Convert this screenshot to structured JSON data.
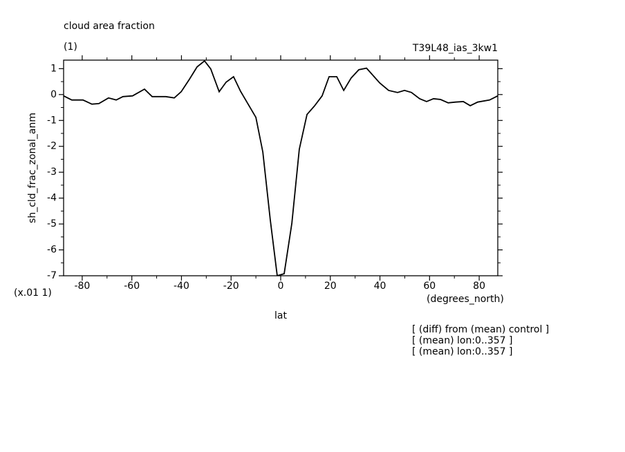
{
  "chart_data": {
    "type": "line",
    "title": "cloud area fraction",
    "subtitle": "(1)",
    "dataset": "T39L48_ias_3kw1",
    "ylabel": "sh_cld_frac_zonal_anm",
    "yscale_note": "(x.01 1)",
    "xunits": "(degrees_north)",
    "xlabel": "lat",
    "notes": [
      "[ (diff) from (mean) control ]",
      "[ (mean) lon:0..357 ]",
      "[ (mean) lon:0..357 ]"
    ],
    "xlim": [
      -87.5,
      87.5
    ],
    "ylim": [
      -7,
      1.33
    ],
    "xticks": [
      -80,
      -60,
      -40,
      -20,
      0,
      20,
      40,
      60,
      80
    ],
    "yticks": [
      -7,
      -6,
      -5,
      -4,
      -3,
      -2,
      -1,
      0,
      1
    ],
    "series": [
      {
        "color": "#000000",
        "x": [
          -87.5,
          -84.2,
          -79.7,
          -76.1,
          -73.3,
          -69.4,
          -66.3,
          -63.6,
          -59.7,
          -54.9,
          -51.8,
          -46.3,
          -42.9,
          -40.1,
          -36.8,
          -33.7,
          -30.7,
          -28.2,
          -24.8,
          -22.0,
          -19.0,
          -16.2,
          -10.0,
          -7.2,
          -4.2,
          -1.4,
          1.4,
          4.5,
          7.5,
          10.6,
          13.7,
          16.7,
          19.5,
          22.6,
          25.4,
          28.4,
          31.5,
          34.6,
          39.9,
          43.5,
          47.1,
          49.9,
          52.7,
          56.0,
          58.8,
          61.6,
          64.4,
          67.5,
          70.5,
          73.6,
          76.4,
          79.4,
          84.2,
          87.5
        ],
        "values": [
          -0.05,
          -0.21,
          -0.21,
          -0.37,
          -0.35,
          -0.13,
          -0.21,
          -0.08,
          -0.05,
          0.21,
          -0.08,
          -0.08,
          -0.13,
          0.11,
          0.59,
          1.07,
          1.3,
          0.99,
          0.11,
          0.48,
          0.69,
          0.13,
          -0.88,
          -2.22,
          -4.84,
          -7.0,
          -6.92,
          -4.97,
          -2.11,
          -0.77,
          -0.43,
          -0.05,
          0.69,
          0.69,
          0.16,
          0.64,
          0.96,
          1.02,
          0.45,
          0.16,
          0.08,
          0.16,
          0.08,
          -0.16,
          -0.27,
          -0.16,
          -0.19,
          -0.32,
          -0.29,
          -0.27,
          -0.43,
          -0.29,
          -0.21,
          -0.05
        ]
      }
    ]
  }
}
